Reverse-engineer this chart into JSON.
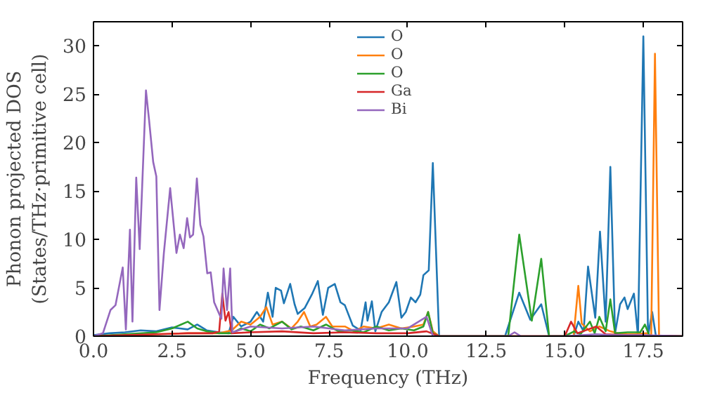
{
  "chart_data": {
    "type": "line",
    "xlabel": "Frequency (THz)",
    "ylabel": "Phonon projected DOS\n(States/THz·primitive cell)",
    "xlim": [
      0,
      18.75
    ],
    "ylim": [
      0,
      32.5
    ],
    "xticks": [
      {
        "value": 0,
        "label": "0.0"
      },
      {
        "value": 2.5,
        "label": "2.5"
      },
      {
        "value": 5,
        "label": "5.0"
      },
      {
        "value": 7.5,
        "label": "7.5"
      },
      {
        "value": 10,
        "label": "10.0"
      },
      {
        "value": 12.5,
        "label": "12.5"
      },
      {
        "value": 15,
        "label": "15.0"
      },
      {
        "value": 17.5,
        "label": "17.5"
      }
    ],
    "yticks": [
      0,
      5,
      10,
      15,
      20,
      25,
      30
    ],
    "grid": false,
    "legend": "top",
    "marker": "none",
    "line_style": "solid",
    "series": [
      {
        "name": "O",
        "color": "#1f77b4",
        "x": [
          0,
          0.5,
          1.0,
          1.5,
          2.0,
          2.5,
          3.0,
          3.3,
          3.6,
          4.0,
          4.3,
          4.45,
          4.7,
          5.0,
          5.2,
          5.4,
          5.55,
          5.7,
          5.8,
          5.97,
          6.06,
          6.26,
          6.4,
          6.5,
          6.72,
          6.95,
          7.14,
          7.3,
          7.47,
          7.68,
          7.86,
          8.0,
          8.25,
          8.5,
          8.66,
          8.72,
          8.86,
          8.97,
          9.17,
          9.4,
          9.64,
          9.8,
          9.94,
          10.1,
          10.25,
          10.4,
          10.5,
          10.67,
          10.8,
          11.0,
          12.9,
          13.1,
          13.55,
          13.9,
          14.25,
          14.5,
          15.0,
          15.28,
          15.43,
          15.6,
          15.74,
          15.97,
          16.12,
          16.3,
          16.45,
          16.6,
          16.76,
          16.9,
          17.0,
          17.2,
          17.33,
          17.5,
          17.65,
          17.78,
          17.9,
          18.75
        ],
        "values": [
          0.1,
          0.3,
          0.4,
          0.6,
          0.5,
          0.9,
          0.7,
          1.2,
          0.6,
          0.4,
          0.3,
          2.0,
          1.0,
          1.5,
          2.5,
          1.5,
          4.5,
          2.0,
          5.0,
          4.7,
          3.4,
          5.4,
          3.3,
          2.3,
          2.9,
          4.3,
          5.7,
          2.2,
          5.0,
          5.4,
          3.5,
          3.2,
          1.1,
          0.6,
          3.5,
          1.6,
          3.6,
          0.5,
          2.5,
          3.5,
          5.6,
          1.9,
          2.5,
          4.0,
          3.5,
          4.3,
          6.3,
          6.8,
          17.9,
          0,
          0,
          0,
          4.5,
          1.7,
          3.3,
          0,
          0,
          0,
          1.5,
          0.5,
          7.2,
          1.9,
          10.8,
          1.5,
          17.5,
          0.3,
          3.3,
          4.0,
          2.8,
          4.4,
          0,
          31,
          0,
          2.5,
          0,
          0
        ]
      },
      {
        "name": "O",
        "color": "#ff7f0e",
        "x": [
          0,
          1.0,
          2.0,
          3.0,
          4.0,
          4.4,
          4.7,
          5.0,
          5.3,
          5.5,
          5.7,
          6.0,
          6.3,
          6.5,
          6.7,
          6.9,
          7.1,
          7.4,
          7.6,
          8.0,
          8.3,
          8.6,
          9.0,
          9.4,
          9.8,
          10.2,
          10.5,
          10.65,
          10.8,
          11.0,
          15.0,
          15.28,
          15.43,
          15.54,
          15.8,
          16.1,
          16.45,
          16.8,
          17.2,
          17.6,
          17.75,
          17.87,
          18.0,
          18.75
        ],
        "values": [
          0,
          0.1,
          0.2,
          0.3,
          0.3,
          0.6,
          1.5,
          1.2,
          2.0,
          3.0,
          1.2,
          1.5,
          0.8,
          1.5,
          2.5,
          1.0,
          1.2,
          2.0,
          1.0,
          1.0,
          0.5,
          1.0,
          0.8,
          1.2,
          0.8,
          1.0,
          1.2,
          2.5,
          0.5,
          0,
          0,
          0,
          5.2,
          1.3,
          0.5,
          1.0,
          0.5,
          0.2,
          0.2,
          0.3,
          0,
          29.2,
          0,
          0
        ]
      },
      {
        "name": "O",
        "color": "#2ca02c",
        "x": [
          0,
          1.0,
          2.0,
          2.5,
          3.0,
          3.3,
          3.6,
          4.0,
          4.4,
          4.7,
          5.0,
          5.3,
          5.6,
          6.0,
          6.3,
          6.6,
          7.0,
          7.4,
          7.8,
          8.2,
          8.6,
          9.0,
          9.4,
          9.8,
          10.2,
          10.5,
          10.65,
          10.8,
          11.0,
          13.2,
          13.55,
          13.95,
          14.25,
          14.5,
          15.0,
          15.3,
          15.5,
          15.8,
          15.95,
          16.1,
          16.3,
          16.45,
          16.6,
          17.0,
          17.4,
          17.55,
          17.7,
          18.75
        ],
        "values": [
          0,
          0.2,
          0.4,
          0.8,
          1.5,
          0.8,
          0.5,
          0.3,
          0.3,
          0.8,
          0.5,
          1.2,
          0.8,
          1.5,
          0.7,
          1.0,
          0.6,
          1.2,
          0.5,
          0.6,
          0.4,
          1.0,
          0.6,
          0.8,
          0.6,
          1.0,
          2.5,
          0.3,
          0,
          0,
          10.5,
          1.6,
          8.0,
          0,
          0,
          0.5,
          0.2,
          1.5,
          0.3,
          2.0,
          0.5,
          3.8,
          0.3,
          0.4,
          0.4,
          1.2,
          0,
          0
        ]
      },
      {
        "name": "Ga",
        "color": "#d62728",
        "x": [
          0,
          1.0,
          2.0,
          3.0,
          3.8,
          4.0,
          4.1,
          4.2,
          4.3,
          4.4,
          5.0,
          6.0,
          7.0,
          8.0,
          9.0,
          10.0,
          10.6,
          11.0,
          15.0,
          15.2,
          15.4,
          16.0,
          16.3,
          17.0,
          18.75
        ],
        "values": [
          0,
          0.1,
          0.2,
          0.3,
          0.3,
          0.5,
          4.4,
          1.6,
          2.5,
          0.3,
          0.4,
          0.5,
          0.3,
          0.4,
          0.3,
          0.3,
          0.5,
          0,
          0,
          1.5,
          0.3,
          1.0,
          0.2,
          0.1,
          0
        ]
      },
      {
        "name": "Bi",
        "color": "#9467bd",
        "x": [
          0,
          0.3,
          0.54,
          0.7,
          0.93,
          1.03,
          1.16,
          1.24,
          1.36,
          1.47,
          1.67,
          1.77,
          1.9,
          2.0,
          2.1,
          2.24,
          2.44,
          2.64,
          2.75,
          2.87,
          2.98,
          3.07,
          3.17,
          3.29,
          3.4,
          3.5,
          3.62,
          3.73,
          3.84,
          4.0,
          4.07,
          4.14,
          4.25,
          4.35,
          4.42,
          5.0,
          6.0,
          7.0,
          8.0,
          9.0,
          10.0,
          10.6,
          10.8,
          13.2,
          13.4,
          13.6,
          15.0,
          16.0,
          16.5,
          17.5,
          18.75
        ],
        "values": [
          0,
          0.3,
          2.7,
          3.2,
          7.1,
          0.7,
          11,
          1.5,
          16.4,
          9,
          25.4,
          22.3,
          18,
          16.5,
          2.7,
          8.6,
          15.3,
          8.6,
          10.5,
          9.1,
          12.2,
          10.2,
          10.5,
          16.3,
          11.5,
          10.3,
          6.5,
          6.6,
          3.5,
          2.3,
          1.8,
          7,
          2.7,
          7,
          0.4,
          1.0,
          0.8,
          1.0,
          0.6,
          0.8,
          0.8,
          2.0,
          0,
          0,
          0.4,
          0,
          0,
          0.2,
          0.1,
          0.1,
          0
        ]
      }
    ]
  }
}
